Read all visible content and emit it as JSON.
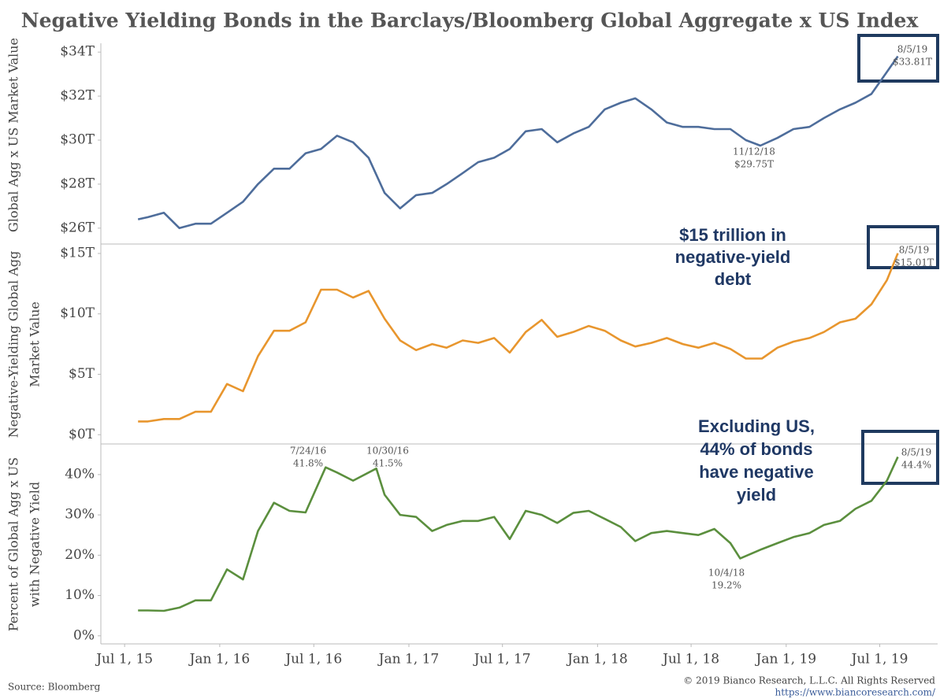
{
  "title": "Negative Yielding Bonds in the Barclays/Bloomberg Global Aggregate x US Index",
  "source": "Source: Bloomberg",
  "copyright": "© 2019 Bianco Research, L.L.C. All Rights Reserved",
  "url": "https://www.biancoresearch.com/",
  "chart_data": [
    {
      "type": "line",
      "y_label": [
        "Global Agg x US Market Value"
      ],
      "color": "#4e6d9b",
      "xlim": [
        "2015-05-16",
        "2019-10-21"
      ],
      "ylim": [
        25.35,
        34.4
      ],
      "yticks": [
        {
          "value": 26,
          "label": "$26T"
        },
        {
          "value": 28,
          "label": "$28T"
        },
        {
          "value": 30,
          "label": "$30T"
        },
        {
          "value": 32,
          "label": "$32T"
        },
        {
          "value": 34,
          "label": "$34T"
        }
      ],
      "x": [
        "2015-07-27",
        "2015-08-15",
        "2015-09-15",
        "2015-10-15",
        "2015-11-15",
        "2015-12-15",
        "2016-01-15",
        "2016-02-15",
        "2016-03-15",
        "2016-04-15",
        "2016-05-15",
        "2016-06-15",
        "2016-07-15",
        "2016-08-15",
        "2016-09-15",
        "2016-10-15",
        "2016-11-15",
        "2016-12-15",
        "2017-01-15",
        "2017-02-15",
        "2017-03-15",
        "2017-04-15",
        "2017-05-15",
        "2017-06-15",
        "2017-07-15",
        "2017-08-15",
        "2017-09-15",
        "2017-10-15",
        "2017-11-15",
        "2017-12-15",
        "2018-01-15",
        "2018-02-15",
        "2018-03-15",
        "2018-04-15",
        "2018-05-15",
        "2018-06-15",
        "2018-07-15",
        "2018-08-15",
        "2018-09-15",
        "2018-10-15",
        "2018-11-12",
        "2018-12-15",
        "2019-01-15",
        "2019-02-15",
        "2019-03-15",
        "2019-04-15",
        "2019-05-15",
        "2019-06-15",
        "2019-07-15",
        "2019-08-05"
      ],
      "values": [
        26.4,
        26.5,
        26.7,
        26.0,
        26.2,
        26.2,
        26.7,
        27.2,
        28.0,
        28.7,
        28.7,
        29.4,
        29.6,
        30.2,
        29.9,
        29.2,
        27.6,
        26.9,
        27.5,
        27.6,
        28.0,
        28.5,
        29.0,
        29.2,
        29.6,
        30.4,
        30.5,
        29.9,
        30.3,
        30.6,
        31.4,
        31.7,
        31.9,
        31.4,
        30.8,
        30.6,
        30.6,
        30.5,
        30.5,
        30.0,
        29.75,
        30.1,
        30.5,
        30.6,
        31.0,
        31.4,
        31.7,
        32.1,
        33.1,
        33.81
      ],
      "annotations": [
        {
          "lines": [
            "8/5/19",
            "$33.81T"
          ]
        },
        {
          "lines": [
            "11/12/18",
            "$29.75T"
          ]
        }
      ]
    },
    {
      "type": "line",
      "y_label": [
        "Negative-Yielding Global Agg",
        "Market Value"
      ],
      "color": "#e8962e",
      "xlim": [
        "2015-05-16",
        "2019-10-21"
      ],
      "ylim": [
        -0.7,
        15.65
      ],
      "yticks": [
        {
          "value": 0,
          "label": "$0T"
        },
        {
          "value": 5,
          "label": "$5T"
        },
        {
          "value": 10,
          "label": "$10T"
        },
        {
          "value": 15,
          "label": "$15T"
        }
      ],
      "x": [
        "2015-07-27",
        "2015-08-15",
        "2015-09-15",
        "2015-10-15",
        "2015-11-15",
        "2015-12-15",
        "2016-01-15",
        "2016-02-15",
        "2016-03-15",
        "2016-04-15",
        "2016-05-15",
        "2016-06-15",
        "2016-07-15",
        "2016-08-15",
        "2016-09-15",
        "2016-10-15",
        "2016-11-15",
        "2016-12-15",
        "2017-01-15",
        "2017-02-15",
        "2017-03-15",
        "2017-04-15",
        "2017-05-15",
        "2017-06-15",
        "2017-07-15",
        "2017-08-15",
        "2017-09-15",
        "2017-10-15",
        "2017-11-15",
        "2017-12-15",
        "2018-01-15",
        "2018-02-15",
        "2018-03-15",
        "2018-04-15",
        "2018-05-15",
        "2018-06-15",
        "2018-07-15",
        "2018-08-15",
        "2018-09-15",
        "2018-10-15",
        "2018-11-15",
        "2018-12-15",
        "2019-01-15",
        "2019-02-15",
        "2019-03-15",
        "2019-04-15",
        "2019-05-15",
        "2019-06-15",
        "2019-07-15",
        "2019-08-05"
      ],
      "values": [
        1.1,
        1.1,
        1.3,
        1.3,
        1.9,
        1.9,
        4.2,
        3.6,
        6.5,
        8.6,
        8.6,
        9.3,
        12.0,
        12.0,
        11.35,
        11.9,
        9.6,
        7.8,
        7.0,
        7.5,
        7.2,
        7.8,
        7.6,
        8.0,
        6.8,
        8.5,
        9.5,
        8.1,
        8.5,
        9.0,
        8.6,
        7.8,
        7.3,
        7.6,
        8.0,
        7.5,
        7.2,
        7.6,
        7.1,
        6.3,
        6.3,
        7.2,
        7.7,
        8.0,
        8.5,
        9.3,
        9.6,
        10.8,
        12.8,
        15.01
      ],
      "annotations": [
        {
          "lines": [
            "8/5/19",
            "$15.01T"
          ]
        }
      ],
      "callout": [
        "$15 trillion in",
        "negative-yield",
        "debt"
      ]
    },
    {
      "type": "line",
      "y_label": [
        "Percent of Global Agg x US",
        "with Negative Yield"
      ],
      "color": "#5b8f3e",
      "xlim": [
        "2015-05-16",
        "2019-10-21"
      ],
      "ylim": [
        -2,
        47.4
      ],
      "yticks": [
        {
          "value": 0,
          "label": "0%"
        },
        {
          "value": 10,
          "label": "10%"
        },
        {
          "value": 20,
          "label": "20%"
        },
        {
          "value": 30,
          "label": "30%"
        },
        {
          "value": 40,
          "label": "40%"
        }
      ],
      "xticks": [
        {
          "value": "2015-07-01",
          "label": "Jul 1, 15"
        },
        {
          "value": "2016-01-01",
          "label": "Jan 1, 16"
        },
        {
          "value": "2016-07-01",
          "label": "Jul 1, 16"
        },
        {
          "value": "2017-01-01",
          "label": "Jan 1, 17"
        },
        {
          "value": "2017-07-01",
          "label": "Jul 1, 17"
        },
        {
          "value": "2018-01-01",
          "label": "Jan 1, 18"
        },
        {
          "value": "2018-07-01",
          "label": "Jul 1, 18"
        },
        {
          "value": "2019-01-01",
          "label": "Jan 1, 19"
        },
        {
          "value": "2019-07-01",
          "label": "Jul 1, 19"
        }
      ],
      "x": [
        "2015-07-27",
        "2015-08-15",
        "2015-09-15",
        "2015-10-15",
        "2015-11-15",
        "2015-12-15",
        "2016-01-15",
        "2016-02-15",
        "2016-03-15",
        "2016-04-15",
        "2016-05-15",
        "2016-06-15",
        "2016-07-24",
        "2016-08-15",
        "2016-09-15",
        "2016-10-30",
        "2016-11-15",
        "2016-12-15",
        "2017-01-15",
        "2017-02-15",
        "2017-03-15",
        "2017-04-15",
        "2017-05-15",
        "2017-06-15",
        "2017-07-15",
        "2017-08-15",
        "2017-09-15",
        "2017-10-15",
        "2017-11-15",
        "2017-12-15",
        "2018-01-15",
        "2018-02-15",
        "2018-03-15",
        "2018-04-15",
        "2018-05-15",
        "2018-06-15",
        "2018-07-15",
        "2018-08-15",
        "2018-09-15",
        "2018-10-04",
        "2018-11-15",
        "2018-12-15",
        "2019-01-15",
        "2019-02-15",
        "2019-03-15",
        "2019-04-15",
        "2019-05-15",
        "2019-06-15",
        "2019-07-15",
        "2019-08-05"
      ],
      "values": [
        6.3,
        6.3,
        6.2,
        7.0,
        8.8,
        8.8,
        16.5,
        14.0,
        26.0,
        33.0,
        31.0,
        30.6,
        41.8,
        40.5,
        38.5,
        41.5,
        35.0,
        30.0,
        29.5,
        26.0,
        27.5,
        28.5,
        28.5,
        29.5,
        24.0,
        31.0,
        30.0,
        28.0,
        30.5,
        31.0,
        29.0,
        27.0,
        23.5,
        25.5,
        26.0,
        25.5,
        25.0,
        26.5,
        23.0,
        19.2,
        21.5,
        23.0,
        24.5,
        25.5,
        27.5,
        28.5,
        31.5,
        33.5,
        38.5,
        44.4
      ],
      "annotations": [
        {
          "lines": [
            "7/24/16",
            "41.8%"
          ]
        },
        {
          "lines": [
            "10/30/16",
            "41.5%"
          ]
        },
        {
          "lines": [
            "10/4/18",
            "19.2%"
          ]
        },
        {
          "lines": [
            "8/5/19",
            "44.4%"
          ]
        }
      ],
      "callout": [
        "Excluding US,",
        "44% of bonds",
        "have negative",
        "yield"
      ]
    }
  ]
}
